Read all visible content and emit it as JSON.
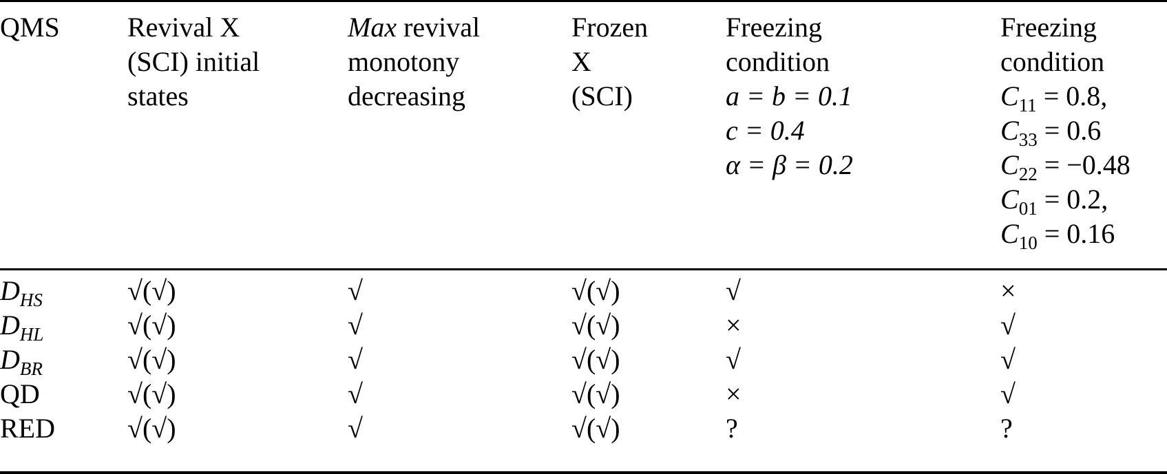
{
  "table": {
    "headers": [
      {
        "lines": [
          "QMS"
        ]
      },
      {
        "lines": [
          "Revival X",
          "(SCI) initial",
          "states"
        ]
      },
      {
        "lines_italic_prefix": "Max",
        "lines": [
          " revival",
          "monotony",
          "decreasing"
        ]
      },
      {
        "lines": [
          "Frozen",
          "X",
          "(SCI)"
        ]
      },
      {
        "lines": [
          "Freezing",
          "condition"
        ],
        "math": [
          "a = b = 0.1",
          "c = 0.4",
          "α = β = 0.2"
        ]
      },
      {
        "lines": [
          "Freezing",
          "condition"
        ],
        "math": [
          {
            "var": "C",
            "sub": "11",
            "rest": " = 0.8,"
          },
          {
            "var": "C",
            "sub": "33",
            "rest": " = 0.6"
          },
          {
            "var": "C",
            "sub": "22",
            "rest": " = −0.48"
          },
          {
            "var": "C",
            "sub": "01",
            "rest": " = 0.2,"
          },
          {
            "var": "C",
            "sub": "10",
            "rest": " = 0.16"
          }
        ]
      }
    ],
    "rows": [
      {
        "qms": {
          "base": "D",
          "sub": "HS",
          "italic": true
        },
        "cells": [
          "√(√)",
          "√",
          "√(√)",
          "√",
          "×"
        ]
      },
      {
        "qms": {
          "base": "D",
          "sub": "HL",
          "italic": true
        },
        "cells": [
          "√(√)",
          "√",
          "√(√)",
          "×",
          "√"
        ]
      },
      {
        "qms": {
          "base": "D",
          "sub": "BR",
          "italic": true
        },
        "cells": [
          "√(√)",
          "√",
          "√(√)",
          "√",
          "√"
        ]
      },
      {
        "qms": {
          "base": "QD",
          "sub": "",
          "italic": false
        },
        "cells": [
          "√(√)",
          "√",
          "√(√)",
          "×",
          "√"
        ]
      },
      {
        "qms": {
          "base": "RED",
          "sub": "",
          "italic": false
        },
        "cells": [
          "√(√)",
          "√",
          "√(√)",
          "?",
          "?"
        ]
      }
    ]
  }
}
